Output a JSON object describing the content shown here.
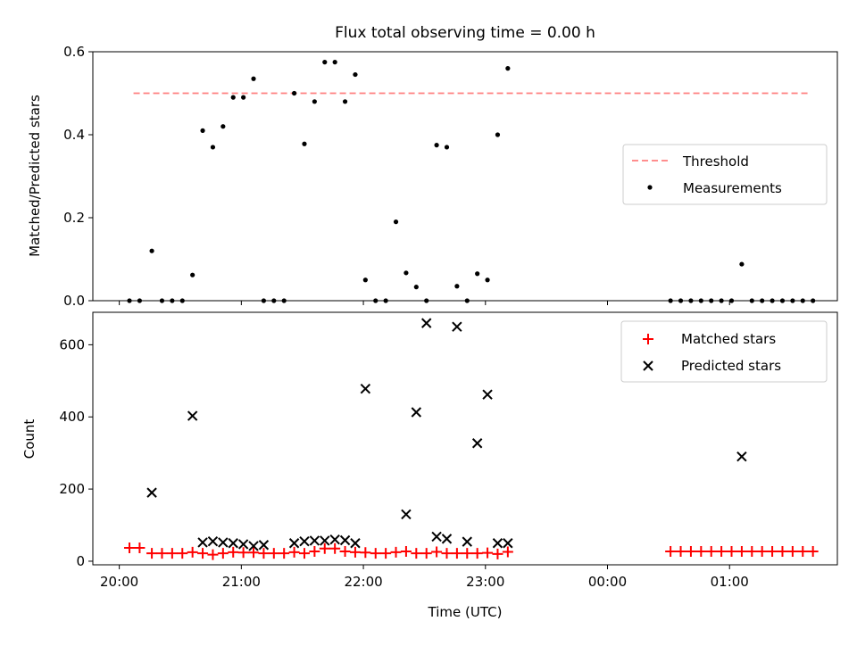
{
  "title": "Flux total observing time = 0.00 h",
  "chart_data": [
    {
      "type": "scatter",
      "ylabel": "Matched/Predicted stars",
      "ylim": [
        0,
        0.6
      ],
      "yticks": [
        0.0,
        0.2,
        0.4,
        0.6
      ],
      "ytick_labels": [
        "0.0",
        "0.2",
        "0.4",
        "0.6"
      ],
      "xlim": [
        "19:47",
        "01:53"
      ],
      "xticks": [
        "20:00",
        "21:00",
        "22:00",
        "23:00",
        "00:00",
        "01:00"
      ],
      "xtick_labels": [
        "",
        "",
        "",
        "",
        "",
        ""
      ],
      "legend_position": "center-right",
      "threshold": {
        "name": "Threshold",
        "value": 0.5,
        "x_range": [
          "20:07",
          "01:40"
        ],
        "color": "#ff7f7f",
        "style": "dashed"
      },
      "series": [
        {
          "name": "Measurements",
          "marker": "dot",
          "color": "#000000",
          "x": [
            "20:05",
            "20:10",
            "20:16",
            "20:21",
            "20:26",
            "20:31",
            "20:36",
            "20:41",
            "20:46",
            "20:51",
            "20:56",
            "21:01",
            "21:06",
            "21:11",
            "21:16",
            "21:21",
            "21:26",
            "21:31",
            "21:36",
            "21:41",
            "21:46",
            "21:51",
            "21:56",
            "22:01",
            "22:06",
            "22:11",
            "22:16",
            "22:21",
            "22:26",
            "22:31",
            "22:36",
            "22:41",
            "22:46",
            "22:51",
            "22:56",
            "23:01",
            "23:06",
            "23:11",
            "00:31",
            "00:36",
            "00:41",
            "00:46",
            "00:51",
            "00:56",
            "01:01",
            "01:06",
            "01:11",
            "01:16",
            "01:21",
            "01:26",
            "01:31",
            "01:36",
            "01:41"
          ],
          "y": [
            0.0,
            0.0,
            0.12,
            0.0,
            0.0,
            0.0,
            0.062,
            0.41,
            0.37,
            0.42,
            0.49,
            0.49,
            0.535,
            0.0,
            0.0,
            0.0,
            0.5,
            0.378,
            0.48,
            0.575,
            0.575,
            0.48,
            0.545,
            0.05,
            0.0,
            0.0,
            0.19,
            0.067,
            0.033,
            0.0,
            0.375,
            0.37,
            0.035,
            0.0,
            0.065,
            0.05,
            0.4,
            0.56,
            0.0,
            0.0,
            0.0,
            0.0,
            0.0,
            0.0,
            0.0,
            0.088,
            0.0,
            0.0,
            0.0,
            0.0,
            0.0,
            0.0,
            0.0
          ]
        }
      ]
    },
    {
      "type": "scatter",
      "ylabel": "Count",
      "xlabel": "Time (UTC)",
      "ylim": [
        -10,
        690
      ],
      "yticks": [
        0,
        200,
        400,
        600
      ],
      "ytick_labels": [
        "0",
        "200",
        "400",
        "600"
      ],
      "xlim": [
        "19:47",
        "01:53"
      ],
      "xticks": [
        "20:00",
        "21:00",
        "22:00",
        "23:00",
        "00:00",
        "01:00"
      ],
      "xtick_labels": [
        "20:00",
        "21:00",
        "22:00",
        "23:00",
        "00:00",
        "01:00"
      ],
      "legend_position": "upper-right",
      "series": [
        {
          "name": "Matched stars",
          "marker": "plus",
          "color": "#ff0000",
          "x": [
            "20:05",
            "20:10",
            "20:16",
            "20:21",
            "20:26",
            "20:31",
            "20:36",
            "20:41",
            "20:46",
            "20:51",
            "20:56",
            "21:01",
            "21:06",
            "21:11",
            "21:16",
            "21:21",
            "21:26",
            "21:31",
            "21:36",
            "21:41",
            "21:46",
            "21:51",
            "21:56",
            "22:01",
            "22:06",
            "22:11",
            "22:16",
            "22:21",
            "22:26",
            "22:31",
            "22:36",
            "22:41",
            "22:46",
            "22:51",
            "22:56",
            "23:01",
            "23:06",
            "23:11",
            "00:31",
            "00:36",
            "00:41",
            "00:46",
            "00:51",
            "00:56",
            "01:01",
            "01:06",
            "01:11",
            "01:16",
            "01:21",
            "01:26",
            "01:31",
            "01:36",
            "01:41"
          ],
          "y": [
            37,
            37,
            22,
            22,
            22,
            22,
            25,
            22,
            18,
            22,
            25,
            24,
            24,
            22,
            22,
            22,
            25,
            22,
            27,
            35,
            35,
            27,
            25,
            24,
            22,
            22,
            25,
            27,
            22,
            22,
            26,
            22,
            22,
            22,
            22,
            23,
            20,
            26,
            27,
            27,
            27,
            27,
            27,
            27,
            27,
            27,
            27,
            27,
            27,
            27,
            27,
            27,
            27
          ]
        },
        {
          "name": "Predicted stars",
          "marker": "x",
          "color": "#000000",
          "x": [
            "20:16",
            "20:36",
            "20:41",
            "20:46",
            "20:51",
            "20:56",
            "21:01",
            "21:06",
            "21:11",
            "21:26",
            "21:31",
            "21:36",
            "21:41",
            "21:46",
            "21:51",
            "21:56",
            "22:01",
            "22:21",
            "22:26",
            "22:31",
            "22:36",
            "22:41",
            "22:46",
            "22:51",
            "22:56",
            "23:01",
            "23:06",
            "23:11",
            "01:06"
          ],
          "y": [
            190,
            403,
            52,
            55,
            52,
            50,
            47,
            42,
            45,
            50,
            55,
            57,
            57,
            60,
            58,
            50,
            478,
            130,
            413,
            660,
            68,
            62,
            650,
            54,
            327,
            462,
            50,
            50,
            290
          ]
        }
      ]
    }
  ]
}
